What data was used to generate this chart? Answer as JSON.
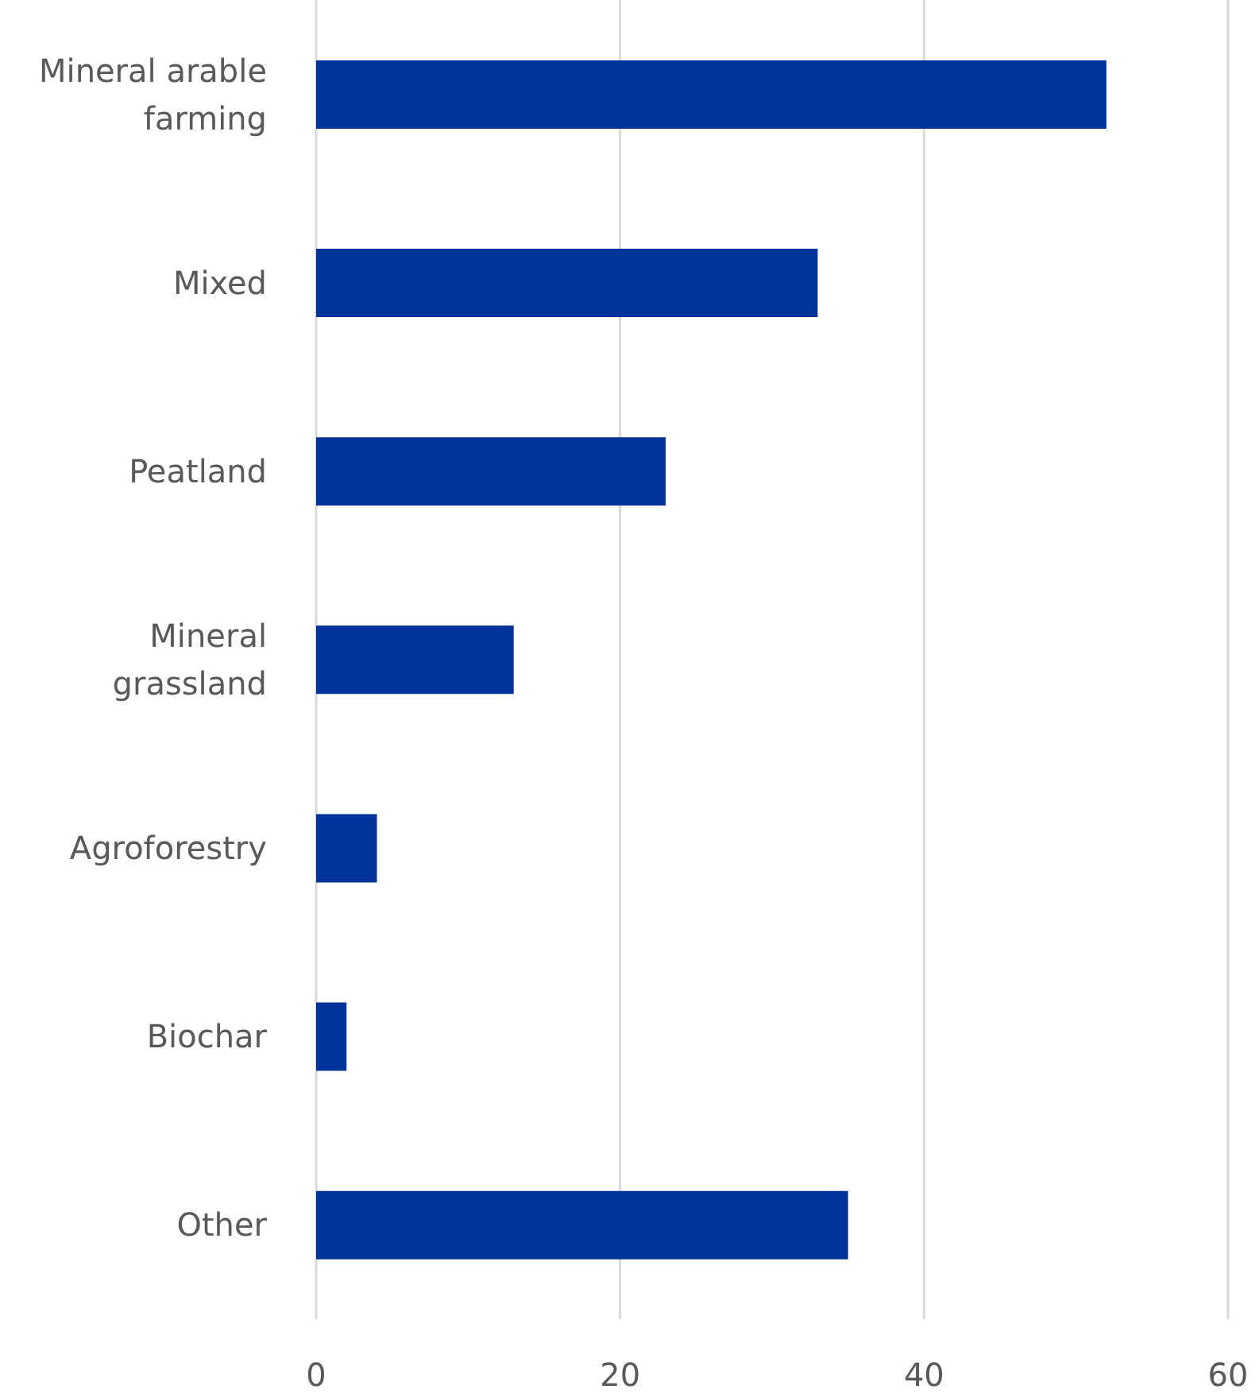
{
  "chart_data": {
    "type": "bar",
    "orientation": "horizontal",
    "categories": [
      "Mineral arable farming",
      "Mixed",
      "Peatland",
      "Mineral grassland",
      "Agroforestry",
      "Biochar",
      "Other"
    ],
    "values": [
      52,
      33,
      23,
      13,
      4,
      2,
      35
    ],
    "color": "#003399",
    "xlim": [
      0,
      60
    ],
    "xticks": [
      0,
      20,
      40,
      60
    ],
    "grid": "x"
  }
}
